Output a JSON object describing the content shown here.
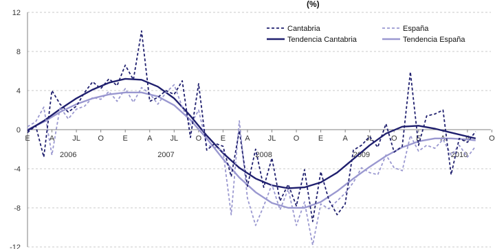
{
  "colors": {
    "cantabria": "#1f1f6e",
    "espana": "#9a98d0",
    "grid": "#c8c8c8",
    "axis": "#808080"
  },
  "chart_data": {
    "type": "line",
    "title_fragment": "(%)",
    "ylim": [
      -12,
      12
    ],
    "yticks": [
      -12,
      -8,
      -4,
      0,
      4,
      8,
      12
    ],
    "x_range": [
      0,
      54
    ],
    "month_ticks": [
      {
        "x": 0,
        "label": "E"
      },
      {
        "x": 3,
        "label": "A"
      },
      {
        "x": 6,
        "label": "JL"
      },
      {
        "x": 9,
        "label": "O"
      },
      {
        "x": 12,
        "label": "E"
      },
      {
        "x": 15,
        "label": "A"
      },
      {
        "x": 18,
        "label": "JL"
      },
      {
        "x": 21,
        "label": "O"
      },
      {
        "x": 24,
        "label": "E"
      },
      {
        "x": 27,
        "label": "A"
      },
      {
        "x": 30,
        "label": "JL"
      },
      {
        "x": 33,
        "label": "O"
      },
      {
        "x": 36,
        "label": "E"
      },
      {
        "x": 39,
        "label": "A"
      },
      {
        "x": 42,
        "label": "JL"
      },
      {
        "x": 45,
        "label": "O"
      },
      {
        "x": 48,
        "label": "E"
      },
      {
        "x": 51,
        "label": "A"
      },
      {
        "x": 54,
        "label": "JL"
      },
      {
        "x": 57,
        "label": "O"
      }
    ],
    "year_labels": [
      {
        "x": 5,
        "label": "2006"
      },
      {
        "x": 17,
        "label": "2007"
      },
      {
        "x": 29,
        "label": "2008"
      },
      {
        "x": 41,
        "label": "2009"
      },
      {
        "x": 53,
        "label": "2010"
      }
    ],
    "grid": true,
    "legend_position": "top-right",
    "series": [
      {
        "name": "Cantabria",
        "style": "dashed",
        "x": [
          0,
          1,
          2,
          3,
          4,
          5,
          6,
          7,
          8,
          9,
          10,
          11,
          12,
          13,
          14,
          15,
          16,
          17,
          18,
          19,
          20,
          21,
          22,
          23,
          24,
          25,
          26,
          27,
          28,
          29,
          30,
          31,
          32,
          33,
          34,
          35,
          36,
          37,
          38,
          39,
          40,
          41,
          42,
          43,
          44,
          45,
          46,
          47,
          48,
          49,
          50,
          51,
          52,
          53,
          54,
          55
        ],
        "values": [
          -0.3,
          0.4,
          -2.8,
          4.0,
          2.6,
          1.8,
          2.4,
          3.8,
          4.9,
          4.2,
          5.2,
          4.5,
          6.6,
          5.1,
          10.1,
          2.9,
          3.3,
          4.0,
          3.6,
          5.0,
          -0.8,
          4.7,
          -2.1,
          -1.4,
          -1.7,
          -4.8,
          -0.1,
          -5.8,
          -2.0,
          -5.9,
          -2.9,
          -7.3,
          -5.6,
          -7.8,
          -4.1,
          -9.4,
          -4.3,
          -7.2,
          -8.7,
          -7.6,
          -2.1,
          -1.6,
          -0.7,
          -1.8,
          0.6,
          -2.3,
          -1.7,
          5.9,
          -1.6,
          1.4,
          1.6,
          2.0,
          -4.6,
          -0.9,
          -1.3,
          -0.2
        ]
      },
      {
        "name": "España",
        "style": "dashed",
        "x": [
          0,
          1,
          2,
          3,
          4,
          5,
          6,
          7,
          8,
          9,
          10,
          11,
          12,
          13,
          14,
          15,
          16,
          17,
          18,
          19,
          20,
          21,
          22,
          23,
          24,
          25,
          26,
          27,
          28,
          29,
          30,
          31,
          32,
          33,
          34,
          35,
          36,
          37,
          38,
          39,
          40,
          41,
          42,
          43,
          44,
          45,
          46,
          47,
          48,
          49,
          50,
          51,
          52,
          53,
          54,
          55
        ],
        "values": [
          0.3,
          0.8,
          2.3,
          -2.6,
          2.3,
          1.1,
          2.1,
          2.4,
          3.3,
          3.1,
          3.9,
          2.9,
          4.2,
          2.8,
          4.3,
          3.7,
          2.6,
          3.8,
          4.6,
          2.3,
          0.5,
          2.0,
          -1.6,
          -1.8,
          -2.2,
          -8.7,
          0.9,
          -7.0,
          -9.8,
          -7.8,
          -5.6,
          -8.2,
          -6.1,
          -9.8,
          -7.4,
          -11.8,
          -7.6,
          -8.1,
          -7.3,
          -6.5,
          -5.4,
          -3.9,
          -4.4,
          -4.6,
          -2.6,
          -3.9,
          -4.2,
          -0.6,
          -2.2,
          -1.6,
          -1.9,
          -1.0,
          -2.6,
          -1.6,
          -2.8,
          -1.7
        ]
      },
      {
        "name": "Tendencia Cantabria",
        "style": "solid",
        "x": [
          0,
          2,
          4,
          6,
          8,
          10,
          12,
          14,
          16,
          18,
          20,
          22,
          24,
          26,
          28,
          30,
          32,
          34,
          36,
          38,
          40,
          42,
          44,
          46,
          48,
          50,
          52,
          54,
          55
        ],
        "values": [
          -0.1,
          0.9,
          2.1,
          3.2,
          4.1,
          4.8,
          5.2,
          5.1,
          4.4,
          3.2,
          1.4,
          -0.6,
          -2.4,
          -3.9,
          -5.0,
          -5.7,
          -6.0,
          -5.9,
          -5.4,
          -4.4,
          -3.0,
          -1.6,
          -0.4,
          0.3,
          0.4,
          0.1,
          -0.3,
          -0.7,
          -0.9
        ]
      },
      {
        "name": "Tendencia España",
        "style": "solid",
        "x": [
          0,
          2,
          4,
          6,
          8,
          10,
          12,
          14,
          16,
          18,
          20,
          22,
          24,
          26,
          28,
          30,
          32,
          34,
          36,
          38,
          40,
          42,
          44,
          46,
          48,
          50,
          52,
          54,
          55
        ],
        "values": [
          0.0,
          0.8,
          1.8,
          2.6,
          3.2,
          3.6,
          3.8,
          3.8,
          3.4,
          2.5,
          1.0,
          -0.9,
          -3.0,
          -4.9,
          -6.4,
          -7.5,
          -8.0,
          -8.0,
          -7.4,
          -6.3,
          -5.0,
          -3.8,
          -2.7,
          -1.8,
          -1.2,
          -0.9,
          -0.9,
          -1.0,
          -1.1
        ]
      }
    ]
  }
}
